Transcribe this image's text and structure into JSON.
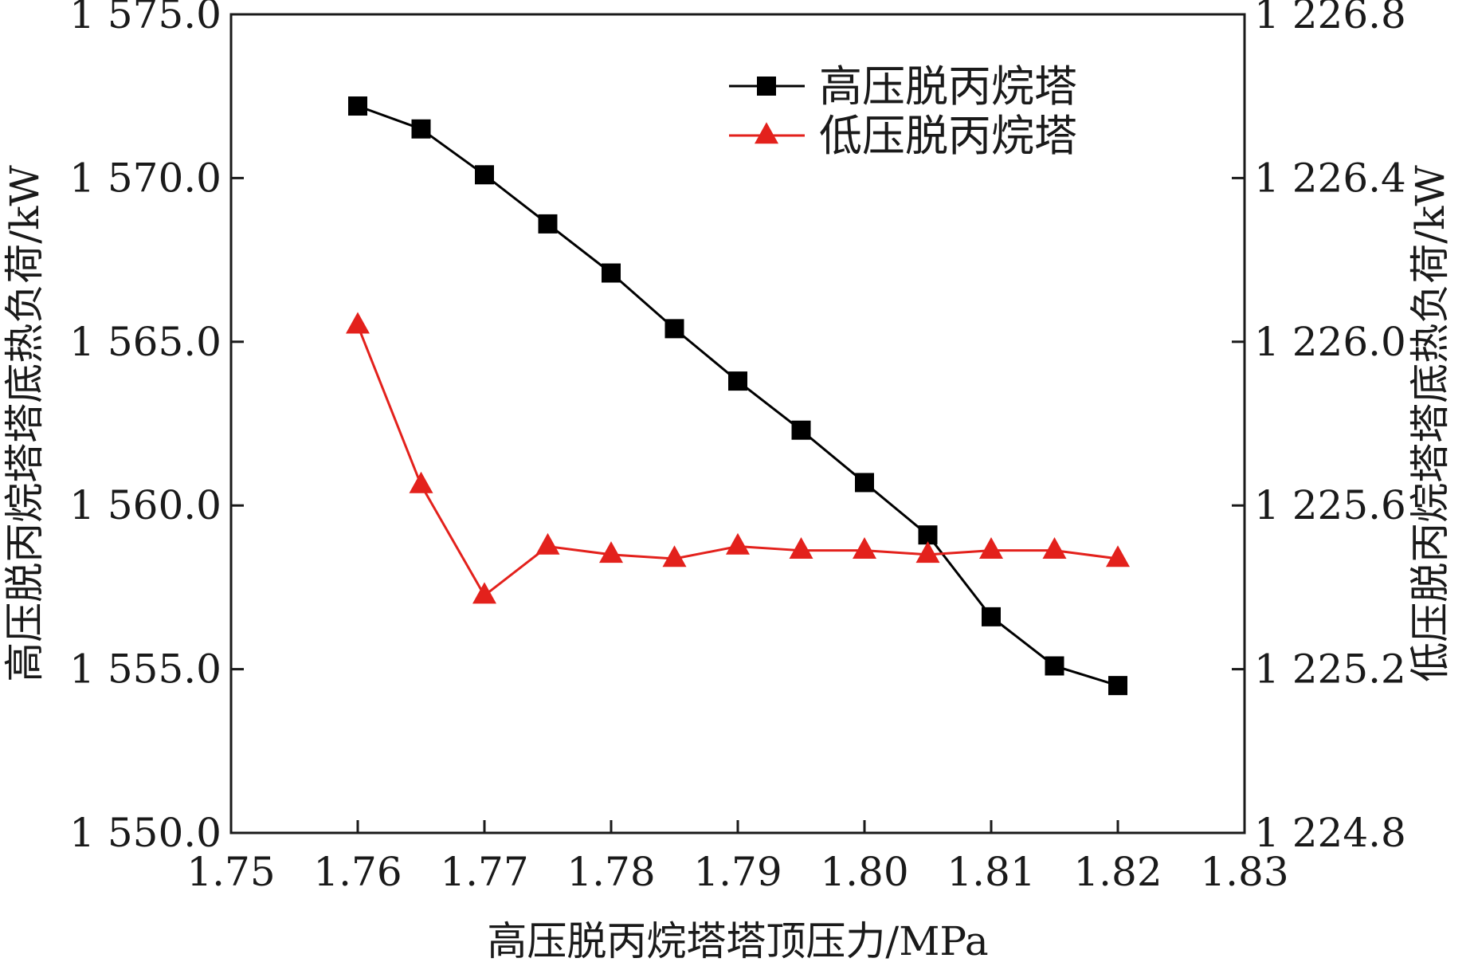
{
  "chart_data": {
    "type": "line",
    "xlabel": "高压脱丙烷塔塔顶压力/MPa",
    "ylabel_left": "高压脱丙烷塔塔底热负荷/kW",
    "ylabel_right": "低压脱丙烷塔塔底热负荷/kW",
    "xlim": [
      1.75,
      1.83
    ],
    "ylim_left": [
      1550.0,
      1575.0
    ],
    "ylim_right": [
      1224.8,
      1226.8
    ],
    "x_ticks": [
      "1.75",
      "1.76",
      "1.77",
      "1.78",
      "1.79",
      "1.80",
      "1.81",
      "1.82",
      "1.83"
    ],
    "y_left_ticks": [
      "1 550.0",
      "1 555.0",
      "1 560.0",
      "1 565.0",
      "1 570.0",
      "1 575.0"
    ],
    "y_right_ticks": [
      "1 224.8",
      "1 225.2",
      "1 225.6",
      "1 226.0",
      "1 226.4",
      "1 226.8"
    ],
    "grid": false,
    "legend_position": "top-right",
    "x": [
      1.76,
      1.765,
      1.77,
      1.775,
      1.78,
      1.785,
      1.79,
      1.795,
      1.8,
      1.805,
      1.81,
      1.815,
      1.82
    ],
    "series": [
      {
        "name": "高压脱丙烷塔",
        "axis": "left",
        "marker": "square",
        "color": "#000000",
        "values": [
          1572.2,
          1571.5,
          1570.1,
          1568.6,
          1567.1,
          1565.4,
          1563.8,
          1562.3,
          1560.7,
          1559.1,
          1556.6,
          1555.1,
          1554.5
        ]
      },
      {
        "name": "低压脱丙烷塔",
        "axis": "right",
        "marker": "triangle",
        "color": "#e3211c",
        "values": [
          1226.04,
          1225.65,
          1225.38,
          1225.5,
          1225.48,
          1225.47,
          1225.5,
          1225.49,
          1225.49,
          1225.48,
          1225.49,
          1225.49,
          1225.47
        ]
      }
    ]
  }
}
